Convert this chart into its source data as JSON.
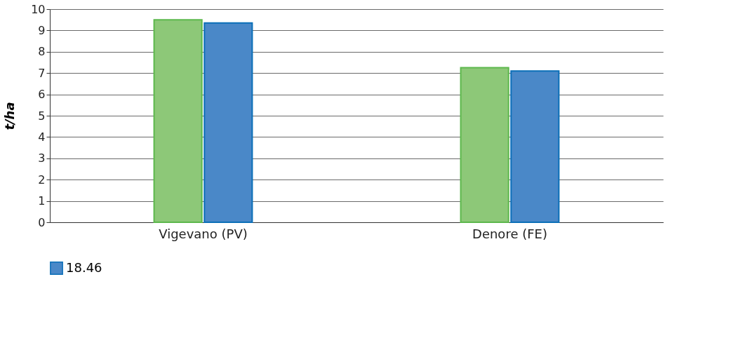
{
  "chart_data": {
    "type": "bar",
    "ylabel": "t/ha",
    "categories": [
      "Vigevano (PV)",
      "Denore (FE)"
    ],
    "series": [
      {
        "color": "#8dc878",
        "values": [
          9.5,
          7.25
        ]
      },
      {
        "name": "18.46",
        "color": "#4a88c8",
        "values": [
          9.35,
          7.1
        ]
      }
    ],
    "ylim": [
      0,
      10
    ],
    "yticks": [
      0,
      1,
      2,
      3,
      4,
      5,
      6,
      7,
      8,
      9,
      10
    ],
    "grid": "y",
    "legend": "bottom"
  }
}
